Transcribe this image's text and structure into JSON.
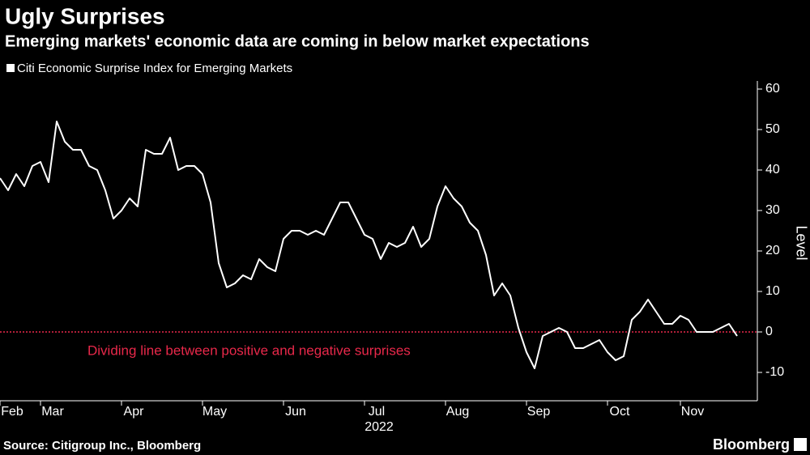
{
  "chart_data": {
    "type": "line",
    "title": "Ugly Surprises",
    "subtitle": "Emerging markets' economic data are coming in below market expectations",
    "x_label": "2022",
    "y_label": "Level",
    "source": "Source: Citigroup Inc., Bloomberg",
    "brand": "Bloomberg",
    "categories": [
      null,
      "Feb",
      null,
      null,
      null,
      null,
      "Mar",
      null,
      null,
      null,
      null,
      null,
      null,
      null,
      null,
      null,
      "Apr",
      null,
      null,
      null,
      null,
      null,
      null,
      null,
      null,
      null,
      "May",
      null,
      null,
      null,
      null,
      null,
      null,
      null,
      null,
      null,
      "Jun",
      null,
      null,
      null,
      null,
      null,
      null,
      null,
      null,
      null,
      "Jul",
      null,
      null,
      null,
      null,
      null,
      null,
      null,
      null,
      null,
      "Aug",
      null,
      null,
      null,
      null,
      null,
      null,
      null,
      null,
      null,
      "Sep",
      null,
      null,
      null,
      null,
      null,
      null,
      null,
      null,
      null,
      "Oct",
      null,
      null,
      null,
      null,
      null,
      null,
      null,
      null,
      "Nov",
      null,
      null,
      null,
      null,
      null,
      null
    ],
    "series": [
      {
        "name": "Citi Economic Surprise Index for Emerging Markets",
        "color": "#ffffff",
        "values": [
          38,
          35,
          39,
          36,
          41,
          42,
          37,
          52,
          47,
          45,
          45,
          41,
          40,
          35,
          28,
          30,
          33,
          31,
          45,
          44,
          44,
          48,
          40,
          41,
          41,
          39,
          32,
          17,
          11,
          12,
          14,
          13,
          18,
          16,
          15,
          23,
          25,
          25,
          24,
          25,
          24,
          28,
          32,
          32,
          28,
          24,
          23,
          18,
          22,
          21,
          22,
          26,
          21,
          23,
          31,
          36,
          33,
          31,
          27,
          25,
          19,
          9,
          12,
          9,
          1,
          -5,
          -9,
          -1,
          0,
          1,
          0,
          -4,
          -4,
          -3,
          -2,
          -5,
          -7,
          -6,
          3,
          5,
          8,
          5,
          2,
          2,
          4,
          3,
          0,
          0,
          0,
          1,
          2,
          -1
        ]
      }
    ],
    "reference_line": {
      "value": 0,
      "label": "Dividing line between positive and negative surprises",
      "color": "#e8284a"
    },
    "ylim": [
      -17,
      62
    ],
    "yticks": [
      -10,
      0,
      10,
      20,
      30,
      40,
      50,
      60
    ],
    "legend": "top-left"
  }
}
